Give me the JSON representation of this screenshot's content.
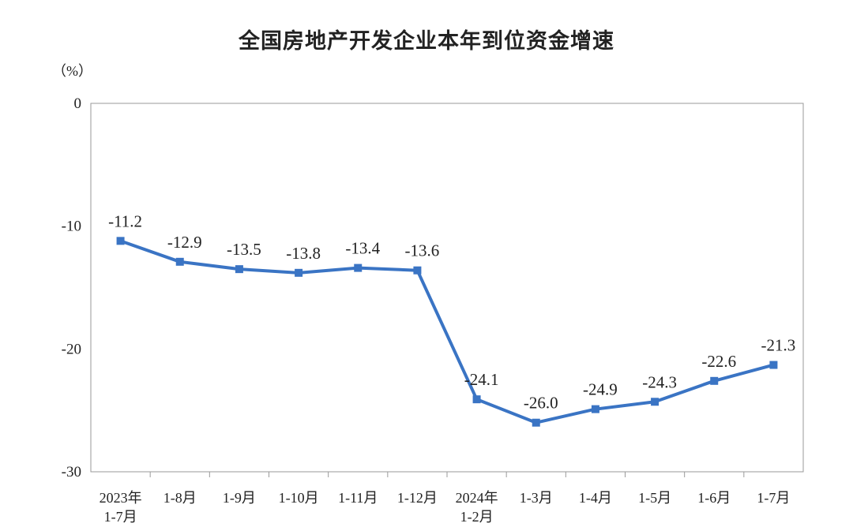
{
  "chart_data": {
    "type": "line",
    "title": "全国房地产开发企业本年到位资金增速",
    "unit_label": "（%）",
    "categories": [
      [
        "2023年",
        "1-7月"
      ],
      [
        "1-8月"
      ],
      [
        "1-9月"
      ],
      [
        "1-10月"
      ],
      [
        "1-11月"
      ],
      [
        "1-12月"
      ],
      [
        "2024年",
        "1-2月"
      ],
      [
        "1-3月"
      ],
      [
        "1-4月"
      ],
      [
        "1-5月"
      ],
      [
        "1-6月"
      ],
      [
        "1-7月"
      ]
    ],
    "values": [
      -11.2,
      -12.9,
      -13.5,
      -13.8,
      -13.4,
      -13.6,
      -24.1,
      -26.0,
      -24.9,
      -24.3,
      -22.6,
      -21.3
    ],
    "value_labels": [
      "-11.2",
      "-12.9",
      "-13.5",
      "-13.8",
      "-13.4",
      "-13.6",
      "-24.1",
      "-26.0",
      "-24.9",
      "-24.3",
      "-22.6",
      "-21.3"
    ],
    "ylim": [
      -30,
      0
    ],
    "yticks": [
      0,
      -10,
      -20,
      -30
    ],
    "ytick_labels": [
      "0",
      "-10",
      "-20",
      "-30"
    ],
    "grid": false,
    "line_color": "#3a74c4"
  }
}
